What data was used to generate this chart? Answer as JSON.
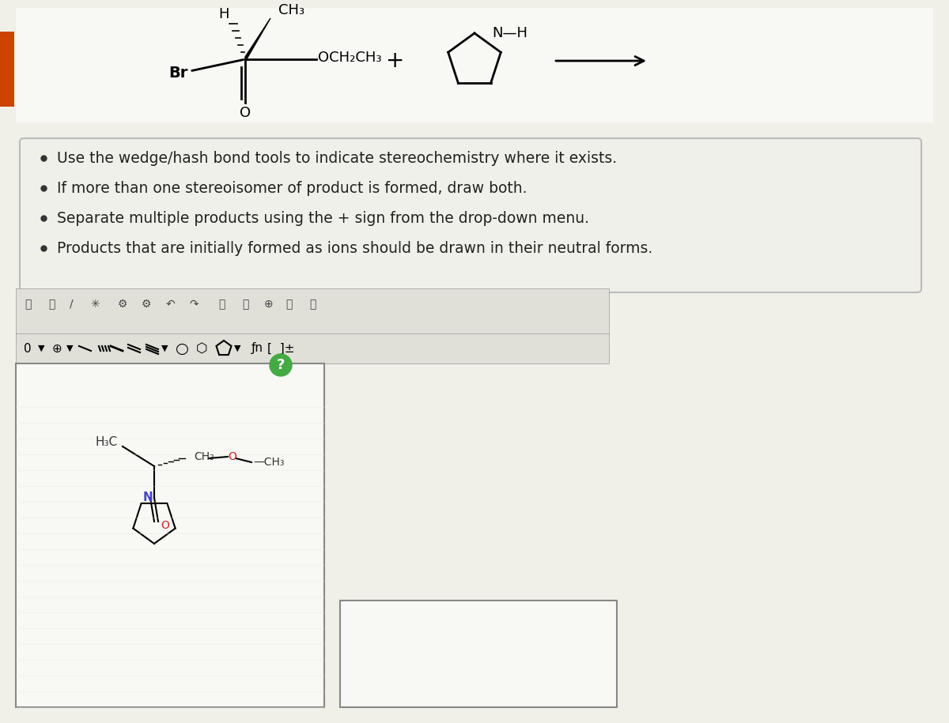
{
  "bg_color": "#f0f0e8",
  "top_reaction_bg": "#f5f5f0",
  "instruction_box_bg": "#f0f0e8",
  "instruction_box_border": "#cccccc",
  "instructions": [
    "Use the wedge/hash bond tools to indicate stereochemistry where it exists.",
    "If more than one stereoisomer of product is formed, draw both.",
    "Separate multiple products using the + sign from the drop-down menu.",
    "Products that are initially formed as ions should be drawn in their neutral forms."
  ],
  "left_tab_color": "#cc4400",
  "toolbar_bg": "#e8e8e0",
  "drawing_area_bg": "#f8f8f4",
  "drawing_area_border": "#888888",
  "product_structure_colors": {
    "N_color": "#4444cc",
    "O_color": "#cc2222",
    "C_color": "#333333",
    "bond_color": "#333333"
  }
}
